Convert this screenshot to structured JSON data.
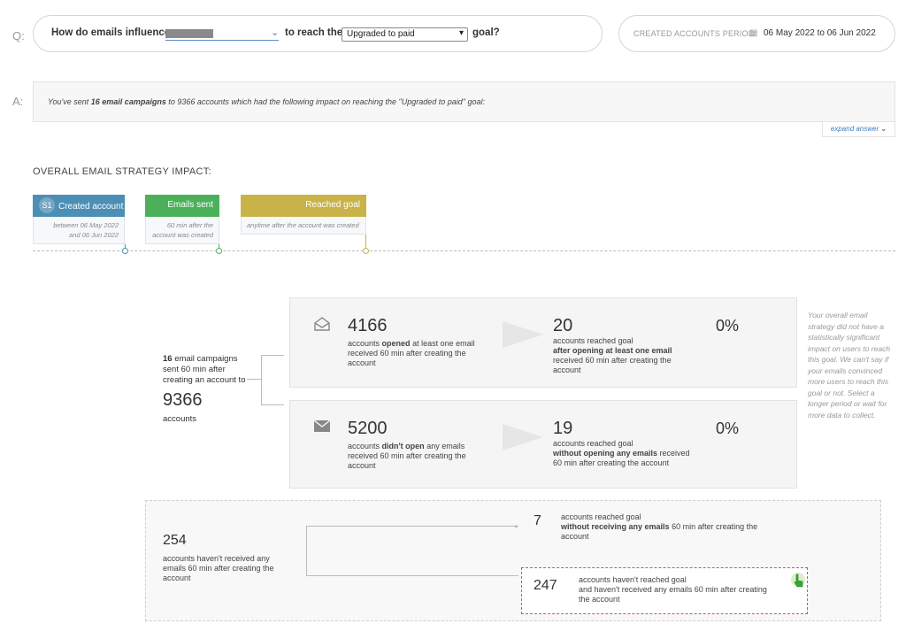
{
  "question": {
    "label": "Q:",
    "prefix": "How do emails influence",
    "middle": "to reach the",
    "goal_select": "Upgraded to paid",
    "suffix": "goal?",
    "period_label": "CREATED ACCOUNTS PERIOD:",
    "period_value": "06 May 2022 to 06 Jun 2022"
  },
  "answer": {
    "label": "A:",
    "text_1": "You've sent",
    "text_bold": "16 email campaigns",
    "text_2": "to 9366 accounts which had the following impact on reaching the \"Upgraded to paid\" goal:",
    "expand": "expand answer"
  },
  "strategy": {
    "title": "OVERALL EMAIL STRATEGY IMPACT:",
    "steps": [
      {
        "badge": "S1",
        "label": "Created account",
        "note_1": "between 06 May 2022",
        "note_2": "and 06 Jun 2022",
        "color": "#4b8fb4"
      },
      {
        "label": "Emails sent",
        "note_1": "60 min after the",
        "note_2": "account was created",
        "color": "#4cb05a"
      },
      {
        "label": "Reached goal",
        "note_1": "anytime after the account was created",
        "color": "#c9b348"
      }
    ]
  },
  "summary": {
    "line_1_bold": "16",
    "line_1": "email campaigns",
    "line_2": "sent 60 min after",
    "line_3": "creating an account to",
    "total": "9366",
    "total_label": "accounts"
  },
  "opened": {
    "icon": "envelope-open-icon",
    "count": "4166",
    "desc_1": "accounts",
    "desc_bold": "opened",
    "desc_2": "at least one email",
    "desc_3": "received 60 min after creating the",
    "desc_4": "account",
    "goal_count": "20",
    "goal_1": "accounts reached goal",
    "goal_bold": "after opening at least one email",
    "goal_3": "received 60 min after creating the",
    "goal_4": "account",
    "pct": "0%"
  },
  "not_opened": {
    "icon": "envelope-closed-icon",
    "count": "5200",
    "desc_1": "accounts",
    "desc_bold": "didn't open",
    "desc_2": "any emails",
    "desc_3": "received 60 min after creating the",
    "desc_4": "account",
    "goal_count": "19",
    "goal_1": "accounts reached goal",
    "goal_bold": "without opening any emails",
    "goal_2b": "received",
    "goal_3": "60 min after creating the account",
    "pct": "0%"
  },
  "side_note": "Your overall email strategy did not have a statistically significant impact on users to reach this goal. We can't say if your emails convinced more users to reach this goal or not. Select a longer period or wait for more data to collect.",
  "no_email": {
    "count": "254",
    "desc_1": "accounts haven't received any",
    "desc_2": "emails 60 min after creating the",
    "desc_3": "account",
    "reached_count": "7",
    "reached_1": "accounts reached goal",
    "reached_bold": "without receiving any emails",
    "reached_2": "60 min after creating the",
    "reached_3": "account",
    "not_reached_count": "247",
    "not_reached_1": "accounts haven't reached goal",
    "not_reached_2": "and haven't received any emails 60 min after creating",
    "not_reached_3": "the account"
  }
}
